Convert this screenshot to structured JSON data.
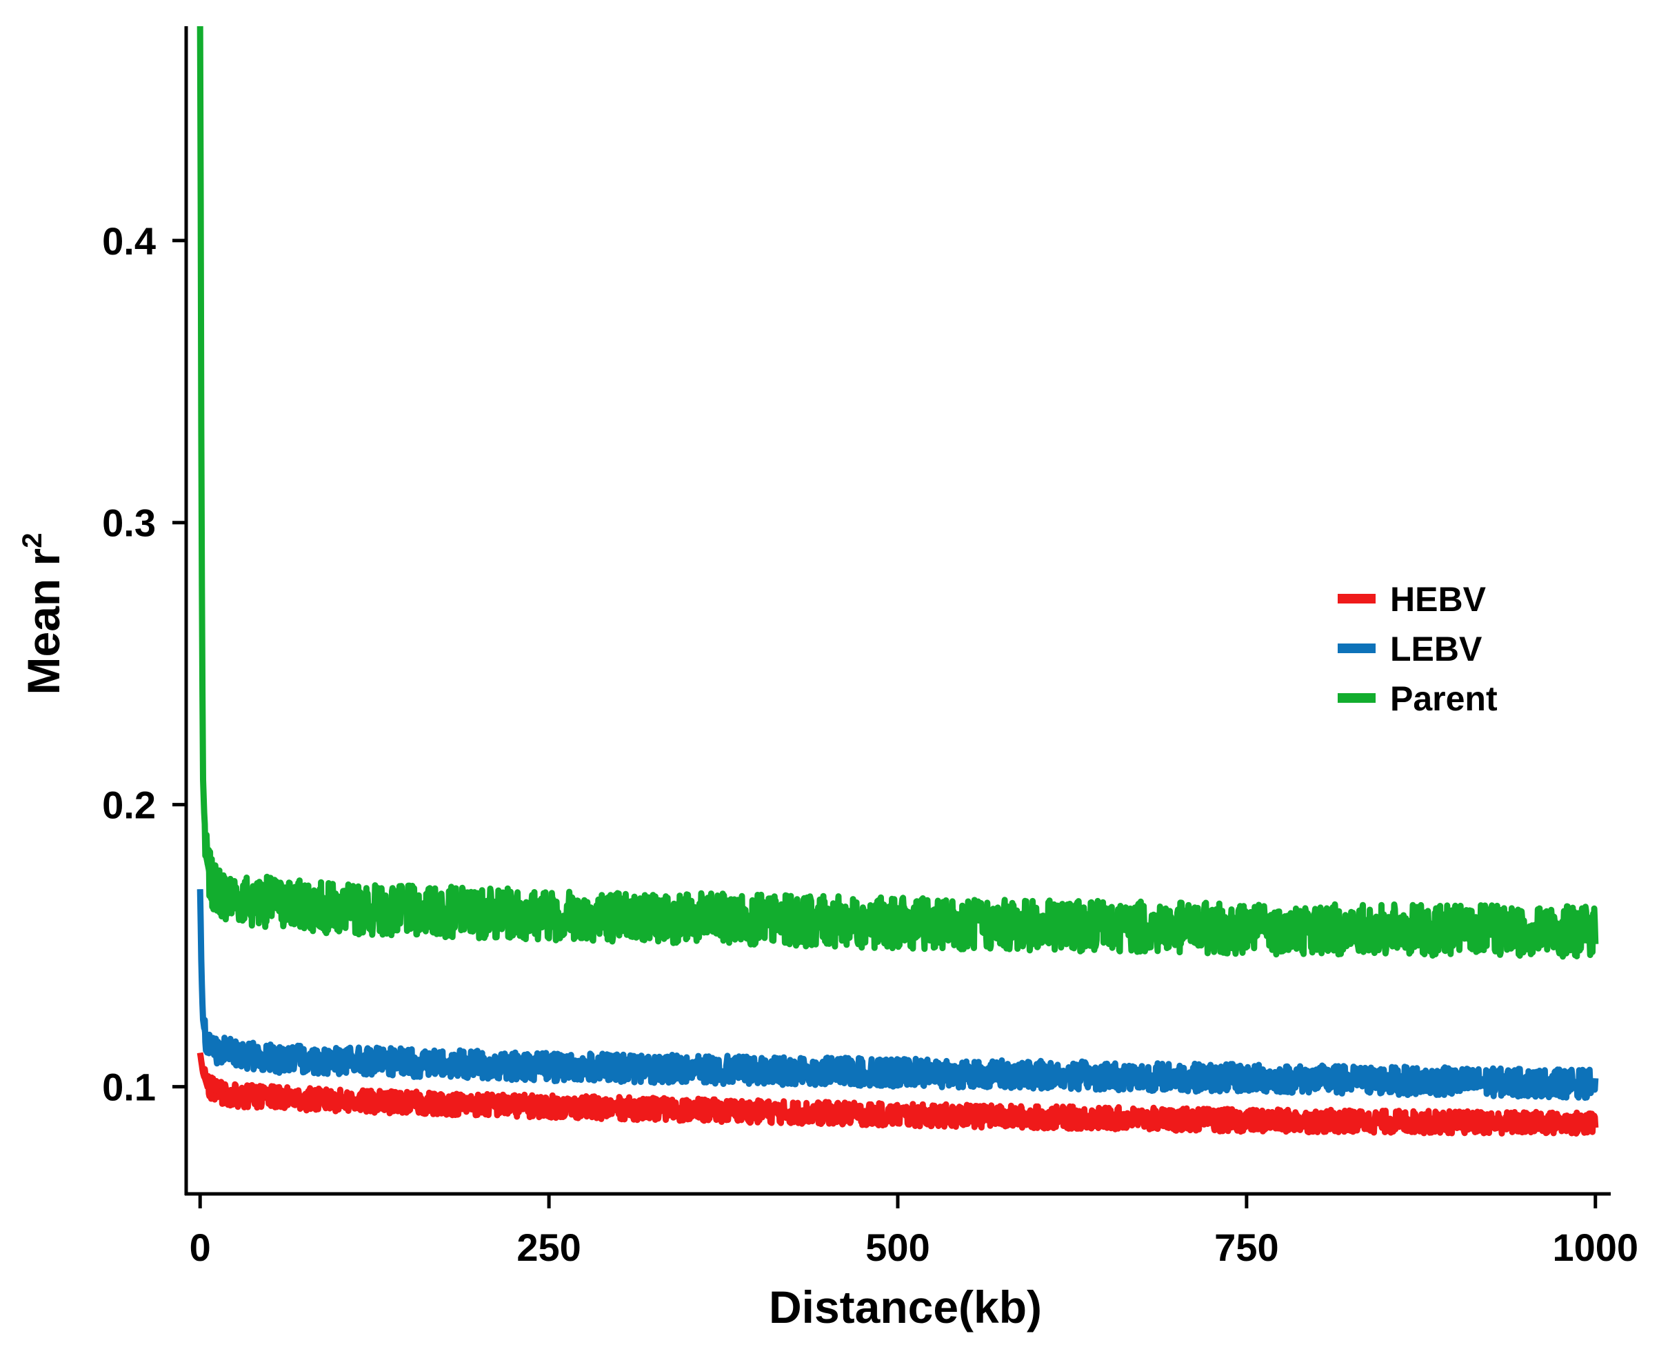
{
  "chart_data": {
    "type": "line",
    "title": "",
    "xlabel": "Distance(kb)",
    "ylabel": "Mean r",
    "ylabel_superscript": "2",
    "xlim": [
      -10,
      1010
    ],
    "ylim": [
      0.062,
      0.476
    ],
    "x_ticks": [
      0,
      250,
      500,
      750,
      1000
    ],
    "x_tick_labels": [
      "0",
      "250",
      "500",
      "750",
      "1000"
    ],
    "y_ticks": [
      0.1,
      0.2,
      0.3,
      0.4
    ],
    "y_tick_labels": [
      "0.1",
      "0.2",
      "0.3",
      "0.4"
    ],
    "grid": false,
    "legend_position": "center-right",
    "noise_seed": 7,
    "series": [
      {
        "name": "Parent",
        "color": "#12ad2e",
        "band": 0.009,
        "points": [
          [
            0,
            0.476
          ],
          [
            0.5,
            0.4
          ],
          [
            1,
            0.3
          ],
          [
            2,
            0.21
          ],
          [
            4,
            0.182
          ],
          [
            8,
            0.172
          ],
          [
            20,
            0.167
          ],
          [
            100,
            0.163
          ],
          [
            250,
            0.161
          ],
          [
            500,
            0.158
          ],
          [
            750,
            0.156
          ],
          [
            1000,
            0.155
          ]
        ]
      },
      {
        "name": "LEBV",
        "color": "#0d72b9",
        "band": 0.005,
        "points": [
          [
            0,
            0.17
          ],
          [
            1,
            0.14
          ],
          [
            2,
            0.124
          ],
          [
            4,
            0.117
          ],
          [
            10,
            0.113
          ],
          [
            50,
            0.11
          ],
          [
            250,
            0.107
          ],
          [
            500,
            0.105
          ],
          [
            750,
            0.103
          ],
          [
            1000,
            0.101
          ]
        ]
      },
      {
        "name": "HEBV",
        "color": "#ef1a1a",
        "band": 0.004,
        "points": [
          [
            0,
            0.112
          ],
          [
            2,
            0.105
          ],
          [
            5,
            0.1
          ],
          [
            20,
            0.097
          ],
          [
            100,
            0.095
          ],
          [
            250,
            0.093
          ],
          [
            500,
            0.09
          ],
          [
            750,
            0.088
          ],
          [
            1000,
            0.087
          ]
        ]
      }
    ]
  }
}
